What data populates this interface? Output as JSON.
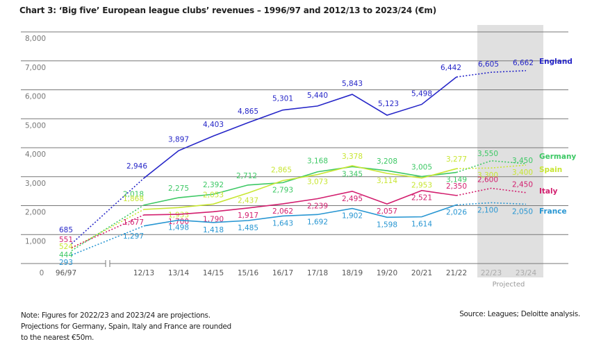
{
  "chart_data": {
    "type": "line",
    "title": "Chart 3: ‘Big five’ European league clubs’ revenues – 1996/97 and 2012/13 to 2023/24 (€m)",
    "xlabel": "",
    "ylabel": "",
    "ylim": [
      0,
      8000
    ],
    "yticks": [
      0,
      1000,
      2000,
      3000,
      4000,
      5000,
      6000,
      7000,
      8000
    ],
    "ytick_labels": [
      "0",
      "1,000",
      "2,000",
      "3,000",
      "4,000",
      "5,000",
      "6,000",
      "7,000",
      "8,000"
    ],
    "categories": [
      "96/97",
      "12/13",
      "13/14",
      "14/15",
      "15/16",
      "16/17",
      "17/18",
      "18/19",
      "19/20",
      "20/21",
      "21/22",
      "22/23",
      "23/24"
    ],
    "projected_categories": [
      "22/23",
      "23/24"
    ],
    "projected_label": "Projected",
    "axis_break_after": "96/97",
    "grid": true,
    "legend": "right-end labels",
    "series": [
      {
        "name": "England",
        "color": "#2626c8",
        "values": [
          685,
          2946,
          3897,
          4403,
          4865,
          5301,
          5440,
          5843,
          5123,
          5498,
          6442,
          6605,
          6662
        ],
        "labels": [
          "685",
          "2,946",
          "3,897",
          "4,403",
          "4,865",
          "5,301",
          "5,440",
          "5,843",
          "5,123",
          "5,498",
          "6,442",
          "6,605",
          "6,662"
        ]
      },
      {
        "name": "Germany",
        "color": "#3cc864",
        "values": [
          444,
          2018,
          2275,
          2392,
          2712,
          2793,
          3168,
          3345,
          3208,
          3005,
          3149,
          3550,
          3450
        ],
        "labels": [
          "444",
          "2,018",
          "2,275",
          "2,392",
          "2,712",
          "2,793",
          "3,168",
          "3,345",
          "3,208",
          "3,005",
          "3,149",
          "3,550",
          "3,450"
        ]
      },
      {
        "name": "Spain",
        "color": "#c8e632",
        "values": [
          524,
          1868,
          1933,
          2053,
          2437,
          2865,
          3073,
          3378,
          3114,
          2953,
          3277,
          3300,
          3400
        ],
        "labels": [
          "524",
          "1,868",
          "1,933",
          "2,053",
          "2,437",
          "2,865",
          "3,073",
          "3,378",
          "3,114",
          "2,953",
          "3,277",
          "3,300",
          "3,400"
        ]
      },
      {
        "name": "Italy",
        "color": "#d21e6e",
        "values": [
          551,
          1677,
          1700,
          1790,
          1917,
          2062,
          2239,
          2495,
          2057,
          2521,
          2350,
          2600,
          2450
        ],
        "labels": [
          "551",
          "1,677",
          "1,700",
          "1,790",
          "1,917",
          "2,062",
          "2,239",
          "2,495",
          "2,057",
          "2,521",
          "2,350",
          "2,600",
          "2,450"
        ]
      },
      {
        "name": "France",
        "color": "#2896d2",
        "values": [
          293,
          1297,
          1498,
          1418,
          1485,
          1643,
          1692,
          1902,
          1598,
          1614,
          2026,
          2100,
          2050
        ],
        "labels": [
          "293",
          "1,297",
          "1,498",
          "1,418",
          "1,485",
          "1,643",
          "1,692",
          "1,902",
          "1,598",
          "1,614",
          "2,026",
          "2,100",
          "2,050"
        ]
      }
    ]
  },
  "footer": {
    "note_lines": [
      "Note: Figures for 2022/23 and 2023/24 are projections.",
      "Projections for Germany, Spain, Italy and France are rounded",
      "to the nearest €50m."
    ],
    "source": "Source: Leagues; Deloitte analysis."
  }
}
